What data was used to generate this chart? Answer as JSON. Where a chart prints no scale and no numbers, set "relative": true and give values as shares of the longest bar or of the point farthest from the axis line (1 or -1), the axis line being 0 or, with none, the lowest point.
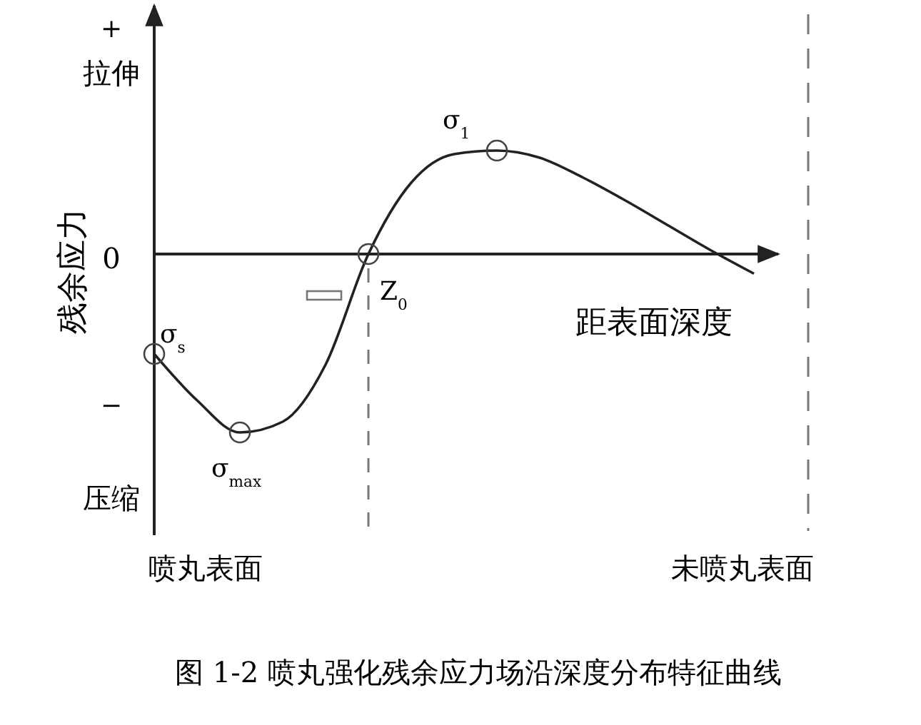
{
  "chart_data": {
    "type": "line",
    "relative": true,
    "title": "图 1-2 喷丸强化残余应力场沿深度分布特征曲线",
    "xlabel": "距表面深度",
    "ylabel": "残余应力",
    "categories": [
      null,
      null,
      null,
      null,
      null,
      null,
      null,
      null,
      null,
      null,
      null,
      null,
      null,
      null,
      null
    ],
    "series": [
      {
        "color": "#222222",
        "values": [
          -0.56,
          -0.82,
          -1,
          -0.94,
          -0.62,
          0,
          0.4,
          0.56,
          0.58,
          0.54,
          0.43,
          0.3,
          0.16,
          0.02,
          -0.11
        ]
      }
    ],
    "annotations": [
      "0",
      "+",
      "拉伸",
      "−",
      "压缩",
      "喷丸表面",
      "未喷丸表面",
      "σ$_{s}$",
      "σ$_{max}$",
      "σ$_{1}$",
      "Z$_{0}$"
    ],
    "grid": false,
    "marker": "none",
    "line_style": "solid"
  }
}
